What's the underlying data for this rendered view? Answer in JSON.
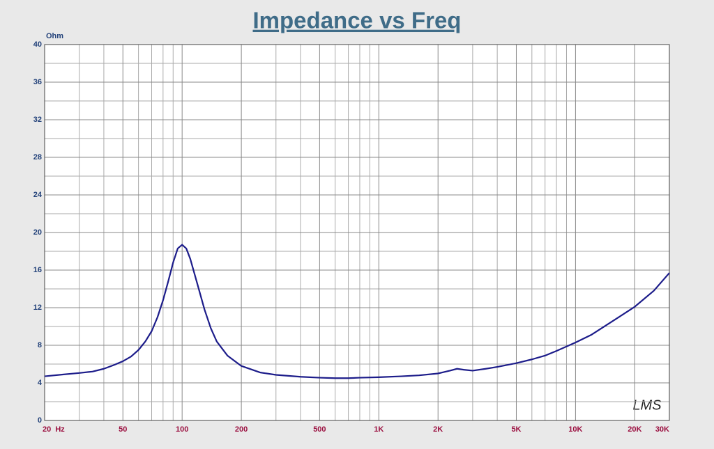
{
  "chart_data": {
    "type": "line",
    "title": "Impedance vs Freq",
    "y_label": "Ohm",
    "watermark": "LMS",
    "x_scale": "log",
    "x": [
      20,
      25,
      30,
      35,
      40,
      45,
      50,
      55,
      60,
      65,
      70,
      75,
      80,
      85,
      90,
      95,
      100,
      105,
      110,
      120,
      130,
      140,
      150,
      170,
      200,
      250,
      300,
      400,
      500,
      600,
      700,
      800,
      1000,
      1300,
      1600,
      2000,
      2300,
      2500,
      2700,
      3000,
      3500,
      4000,
      5000,
      6000,
      7000,
      8000,
      10000,
      12000,
      15000,
      20000,
      25000,
      30000
    ],
    "series": [
      {
        "name": "Impedance",
        "color": "#1c1c8a",
        "values": [
          4.7,
          4.9,
          5.05,
          5.2,
          5.5,
          5.9,
          6.3,
          6.8,
          7.5,
          8.4,
          9.5,
          11.0,
          12.8,
          14.8,
          16.8,
          18.3,
          18.7,
          18.3,
          17.2,
          14.4,
          11.8,
          9.8,
          8.4,
          6.9,
          5.8,
          5.1,
          4.85,
          4.65,
          4.55,
          4.5,
          4.5,
          4.55,
          4.6,
          4.7,
          4.8,
          5.0,
          5.3,
          5.5,
          5.4,
          5.3,
          5.5,
          5.7,
          6.1,
          6.5,
          6.9,
          7.4,
          8.3,
          9.1,
          10.4,
          12.1,
          13.8,
          15.7
        ]
      }
    ],
    "xlim": [
      20,
      30000
    ],
    "xticks": [
      {
        "value": 20,
        "label": "20  Hz"
      },
      50,
      100,
      200,
      500,
      {
        "value": 1000,
        "label": "1K"
      },
      {
        "value": 2000,
        "label": "2K"
      },
      {
        "value": 5000,
        "label": "5K"
      },
      {
        "value": 10000,
        "label": "10K"
      },
      {
        "value": 20000,
        "label": "20K"
      },
      {
        "value": 30000,
        "label": "30K"
      }
    ],
    "x_minor_grid": [
      30,
      40,
      60,
      70,
      80,
      90,
      300,
      400,
      600,
      700,
      800,
      900,
      3000,
      4000,
      6000,
      7000,
      8000,
      9000
    ],
    "ylim": [
      0,
      40
    ],
    "yticks": [
      0,
      4,
      8,
      12,
      16,
      20,
      24,
      28,
      32,
      36,
      40
    ],
    "y_minor_grid": [
      2,
      6,
      10,
      14,
      18,
      22,
      26,
      30,
      34,
      38
    ],
    "grid": true
  }
}
